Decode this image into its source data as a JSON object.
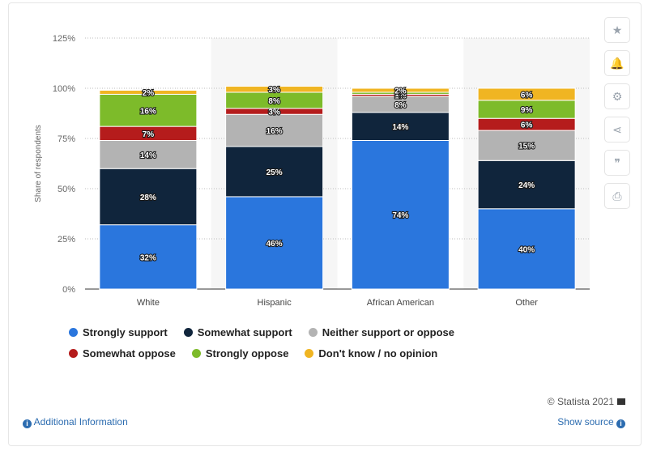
{
  "chart_data": {
    "type": "bar",
    "stacked": true,
    "categories": [
      "White",
      "Hispanic",
      "African American",
      "Other"
    ],
    "series": [
      {
        "name": "Strongly support",
        "values": [
          32,
          46,
          74,
          40
        ],
        "labels": [
          "32%",
          "46%",
          "74%",
          "40%"
        ],
        "color": "#2a76dd"
      },
      {
        "name": "Somewhat support",
        "values": [
          28,
          25,
          14,
          24
        ],
        "labels": [
          "28%",
          "25%",
          "14%",
          "24%"
        ],
        "color": "#10253c"
      },
      {
        "name": "Neither support or oppose",
        "values": [
          14,
          16,
          8,
          15
        ],
        "labels": [
          "14%",
          "16%",
          "8%",
          "15%"
        ],
        "color": "#b3b3b3"
      },
      {
        "name": "Somewhat oppose",
        "values": [
          7,
          3,
          1,
          6
        ],
        "labels": [
          "7%",
          "3%",
          "1%",
          "6%"
        ],
        "color": "#b51c1c"
      },
      {
        "name": "Strongly oppose",
        "values": [
          16,
          8,
          1,
          9
        ],
        "labels": [
          "16%",
          "8%",
          "1%",
          "9%"
        ],
        "color": "#7dbb2a"
      },
      {
        "name": "Don't know / no opinion",
        "values": [
          2,
          3,
          2,
          6
        ],
        "labels": [
          "2%",
          "3%",
          "2%",
          "6%"
        ],
        "color": "#f0b522"
      }
    ],
    "title": "",
    "xlabel": "",
    "ylabel": "Share of respondents",
    "ylim": [
      0,
      125
    ],
    "yticks": [
      0,
      25,
      50,
      75,
      100,
      125
    ],
    "ytick_labels": [
      "0%",
      "25%",
      "50%",
      "75%",
      "100%",
      "125%"
    ],
    "grid": true,
    "legend_position": "bottom"
  },
  "sidebar": {
    "buttons": [
      {
        "name": "favorite-button",
        "icon": "star-icon",
        "glyph": "★"
      },
      {
        "name": "notification-button",
        "icon": "bell-icon",
        "glyph": "🔔"
      },
      {
        "name": "settings-button",
        "icon": "gear-icon",
        "glyph": "⚙"
      },
      {
        "name": "share-button",
        "icon": "share-icon",
        "glyph": "⋖"
      },
      {
        "name": "cite-button",
        "icon": "quote-icon",
        "glyph": "❞"
      },
      {
        "name": "print-button",
        "icon": "print-icon",
        "glyph": "⎙"
      }
    ]
  },
  "footer": {
    "copyright": "© Statista 2021",
    "additional_info": "Additional Information",
    "show_source": "Show source"
  }
}
